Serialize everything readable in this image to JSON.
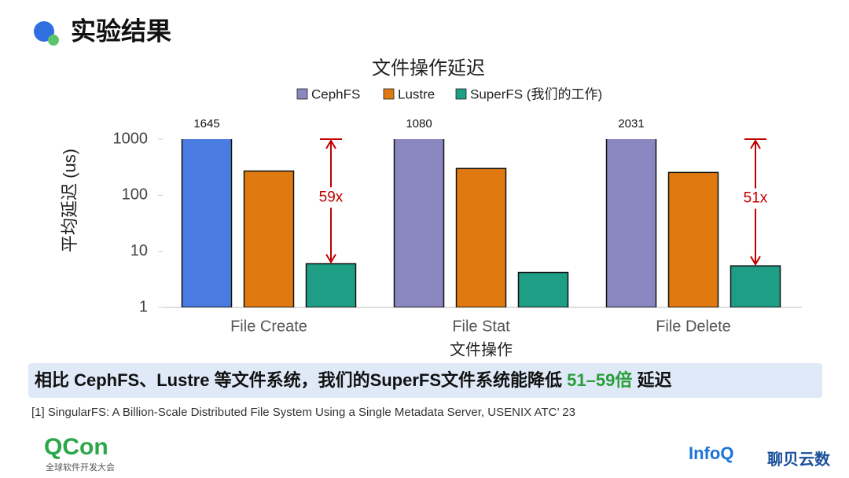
{
  "header": {
    "title": "实验结果"
  },
  "chart_data": {
    "type": "bar",
    "title": "文件操作延迟",
    "x_label": "文件操作",
    "y_label": "平均延迟 (us)",
    "categories": [
      "File Create",
      "File Stat",
      "File Delete"
    ],
    "series": [
      {
        "name": "CephFS",
        "color": "#8b87c0",
        "colors": [
          "#4a7be0",
          "#8b87c0",
          "#8b87c0"
        ],
        "values": [
          1645,
          1080,
          2031
        ],
        "show_values": true
      },
      {
        "name": "Lustre",
        "color": "#e07a10",
        "values": [
          270,
          300,
          255
        ]
      },
      {
        "name": "SuperFS (我们的工作)",
        "color": "#1e9e85",
        "values": [
          6,
          4.2,
          5.5
        ]
      }
    ],
    "log_scale": true,
    "ylim": [
      1,
      1000
    ],
    "yticks": [
      1,
      10,
      100,
      1000
    ],
    "grid": false,
    "legend": "top",
    "annotations": [
      {
        "text": "59x"
      },
      {
        "text": "51x"
      }
    ]
  },
  "summary": {
    "before": "相比 CephFS、Lustre 等文件系统，我们的SuperFS文件系统能降低 ",
    "highlight": "51–59倍",
    "after": " 延迟"
  },
  "footnote": "[1] SingularFS: A Billion-Scale Distributed File System Using a Single Metadata Server, USENIX ATC’ 23",
  "footer": {
    "logo": "QCon",
    "logo_sub": "全球软件开发大会",
    "partner": "InfoQ",
    "watermark": "聊贝云数"
  }
}
